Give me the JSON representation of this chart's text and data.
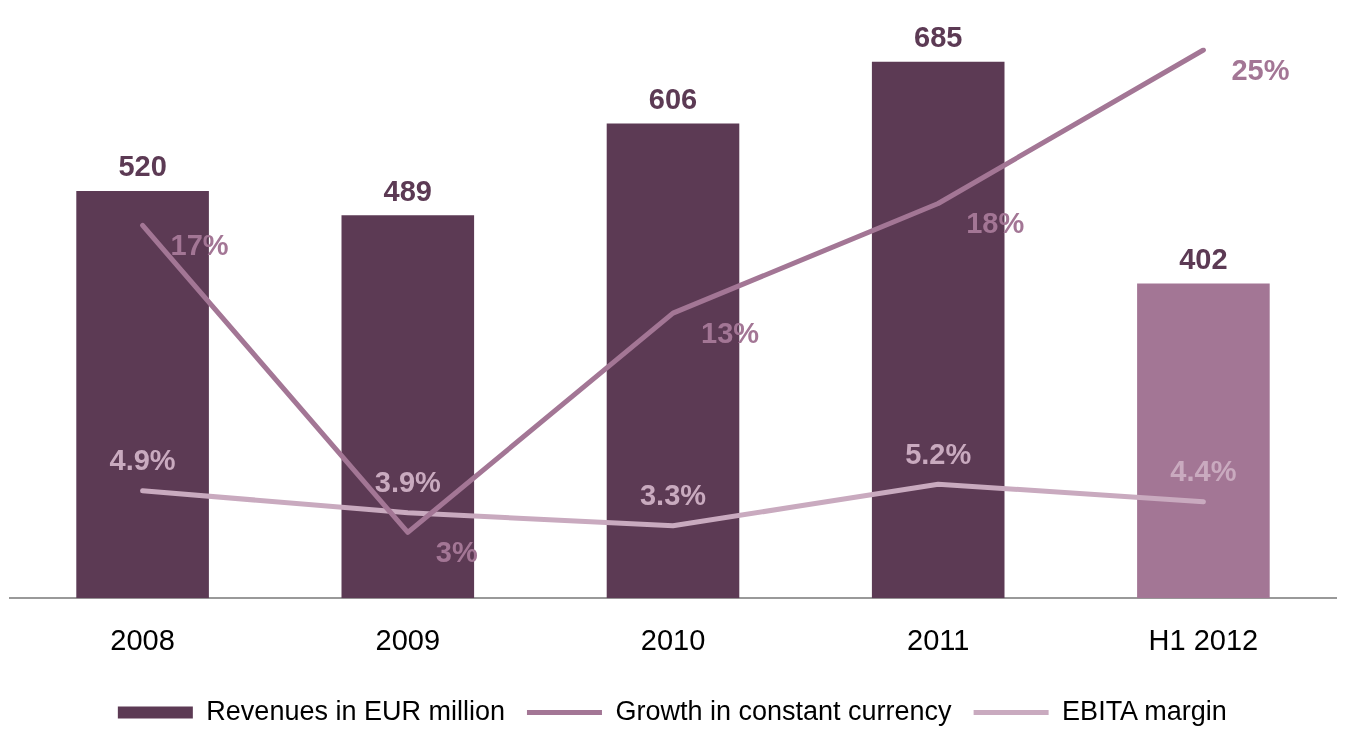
{
  "chart_data": {
    "type": "bar",
    "categories": [
      "2008",
      "2009",
      "2010",
      "2011",
      "H1 2012"
    ],
    "series": [
      {
        "name": "Revenues in EUR million",
        "color": "#5c3a54",
        "colors": [
          "#5c3a54",
          "#5c3a54",
          "#5c3a54",
          "#5c3a54",
          "#a37695"
        ],
        "values": [
          520,
          489,
          606,
          685,
          402
        ],
        "value_labels": [
          "520",
          "489",
          "606",
          "685",
          "402"
        ]
      },
      {
        "name": "Growth in constant currency",
        "type": "line",
        "axis": "y2",
        "color": "#a37695",
        "values": [
          17,
          3,
          13,
          18,
          25
        ],
        "value_labels": [
          "17%",
          "3%",
          "13%",
          "18%",
          "25%"
        ]
      },
      {
        "name": "EBITA margin",
        "type": "line",
        "axis": "y2",
        "color": "#c9aabf",
        "values": [
          4.9,
          3.9,
          3.3,
          5.2,
          4.4
        ],
        "value_labels": [
          "4.9%",
          "3.9%",
          "3.3%",
          "5.2%",
          "4.4%"
        ]
      }
    ],
    "tick_labels": "x",
    "grid": false,
    "legend": "bottom",
    "marker": "none",
    "line_style": "solid"
  }
}
